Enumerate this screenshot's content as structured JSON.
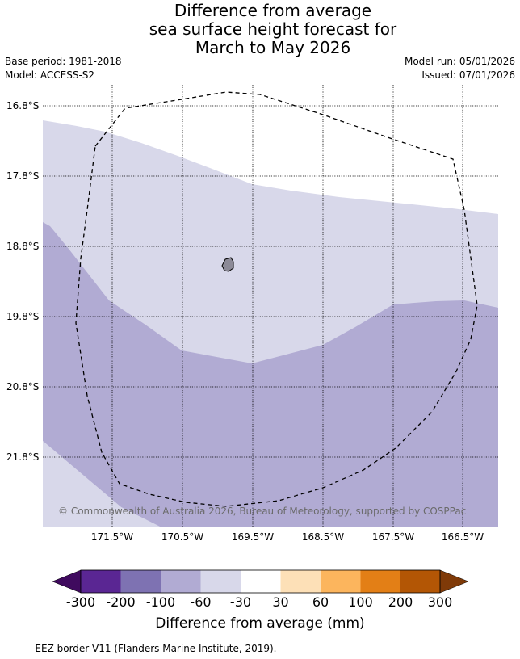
{
  "header": {
    "title_line1": "Difference from average",
    "title_line2": "sea surface height forecast for",
    "title_line3": "March to May 2026",
    "base_period": "Base period: 1981-2018",
    "model": "Model: ACCESS-S2",
    "model_run": "Model run: 05/01/2026",
    "issued": "Issued: 07/01/2026"
  },
  "map": {
    "lat_ticks": [
      "16.8°S",
      "17.8°S",
      "18.8°S",
      "19.8°S",
      "20.8°S",
      "21.8°S"
    ],
    "lon_ticks": [
      "171.5°W",
      "170.5°W",
      "169.5°W",
      "168.5°W",
      "167.5°W",
      "166.5°W"
    ],
    "copyright": "© Commonwealth of Australia 2026, Bureau of Meteorology, supported by COSPPac",
    "colors": {
      "band_neg60_30": "#d8d8ea",
      "band_neg100_60": "#b1abd3",
      "land": "#8c8a97",
      "eez_line": "#000000"
    }
  },
  "colorbar": {
    "title": "Difference from average (mm)",
    "labels": [
      "-300",
      "-200",
      "-100",
      "-60",
      "-30",
      "30",
      "60",
      "100",
      "200",
      "300"
    ],
    "colors": [
      "#3f0a5e",
      "#5a2693",
      "#7e72b2",
      "#b1abd3",
      "#d8d8ea",
      "#ffffff",
      "#fde0b7",
      "#fcb55d",
      "#e37f16",
      "#b35605",
      "#7f3a08"
    ]
  },
  "footer": {
    "eez_note": "--  --  -- EEZ border V11 (Flanders Marine Institute, 2019)."
  }
}
